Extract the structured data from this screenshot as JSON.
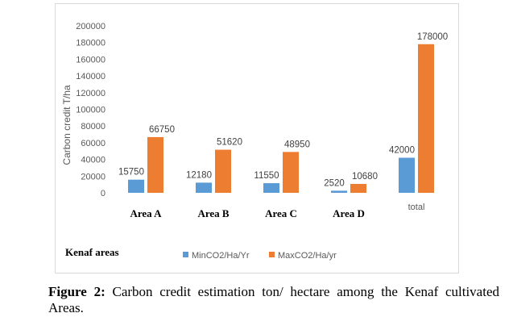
{
  "chart_data": {
    "type": "bar",
    "categories": [
      "Area A",
      "Area B",
      "Area C",
      "Area D",
      "total"
    ],
    "series": [
      {
        "name": "MinCO2/Ha/Yr",
        "values": [
          15750,
          12180,
          11550,
          2520,
          42000
        ],
        "color": "#5b9bd5"
      },
      {
        "name": "MaxCO2/Ha/yr",
        "values": [
          66750,
          51620,
          48950,
          10680,
          178000
        ],
        "color": "#ed7d31"
      }
    ],
    "data_labels": {
      "min": [
        "15750",
        "12180",
        "11550",
        "2520",
        "42000"
      ],
      "max": [
        "66750",
        "51620",
        "48950",
        "10680",
        "178000"
      ]
    },
    "ylim": [
      0,
      200000
    ],
    "yticks": [
      "0",
      "20000",
      "40000",
      "60000",
      "80000",
      "100000",
      "120000",
      "140000",
      "160000",
      "180000",
      "200000"
    ],
    "ylabel": "Carbon credit T/ha",
    "xlabel": "Kenaf areas",
    "legend_position": "bottom",
    "grid": false
  },
  "caption": {
    "label": "Figure 2:",
    "text": "Carbon credit estimation ton/ hectare among the Kenaf cultivated Areas."
  }
}
